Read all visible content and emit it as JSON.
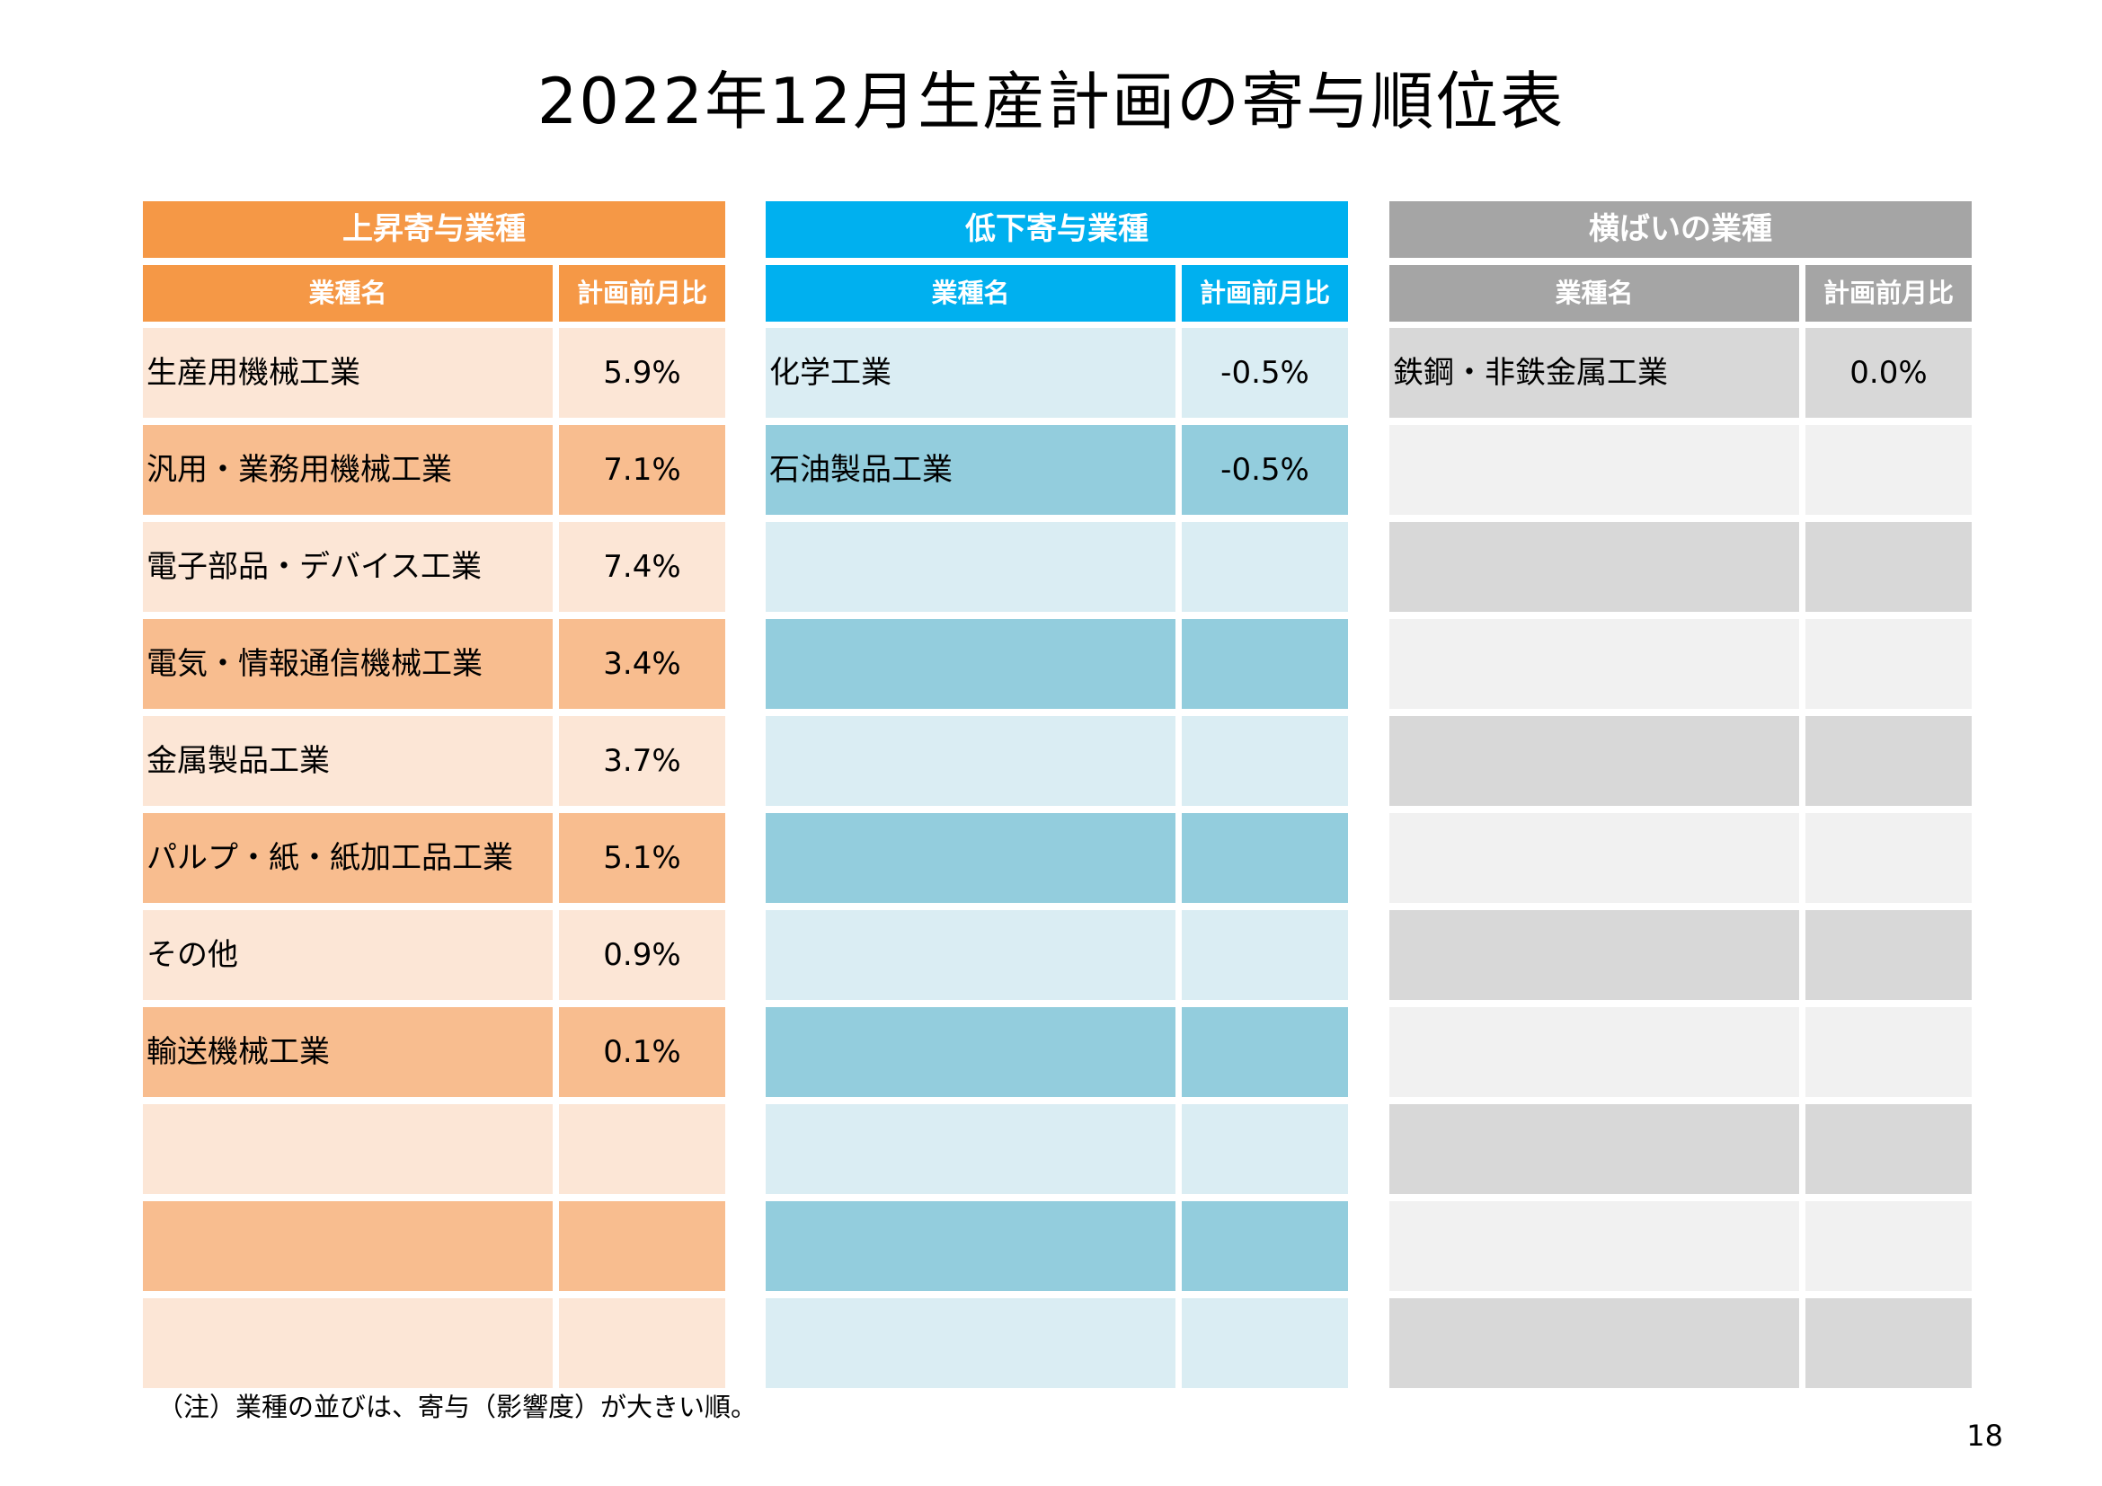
{
  "title": "2022年12月生産計画の寄与順位表",
  "header": {
    "name": "業種名",
    "ratio": "計画前月比"
  },
  "panels": [
    {
      "key": "up",
      "category": "上昇寄与業種",
      "colors": {
        "header": "#f59846",
        "row_light": "#fce6d6",
        "row_dark": "#f8bd8f"
      },
      "rows": [
        {
          "name": "生産用機械工業",
          "value": "5.9%"
        },
        {
          "name": "汎用・業務用機械工業",
          "value": "7.1%"
        },
        {
          "name": "電子部品・デバイス工業",
          "value": "7.4%"
        },
        {
          "name": "電気・情報通信機械工業",
          "value": "3.4%"
        },
        {
          "name": "金属製品工業",
          "value": "3.7%"
        },
        {
          "name": "パルプ・紙・紙加工品工業",
          "value": "5.1%"
        },
        {
          "name": "その他",
          "value": "0.9%"
        },
        {
          "name": "輸送機械工業",
          "value": "0.1%"
        },
        {
          "name": "",
          "value": ""
        },
        {
          "name": "",
          "value": ""
        },
        {
          "name": "",
          "value": ""
        }
      ]
    },
    {
      "key": "down",
      "category": "低下寄与業種",
      "colors": {
        "header": "#00b0ef",
        "row_light": "#daedf3",
        "row_dark": "#93cddd"
      },
      "rows": [
        {
          "name": "化学工業",
          "value": "-0.5%"
        },
        {
          "name": "石油製品工業",
          "value": "-0.5%"
        },
        {
          "name": "",
          "value": ""
        },
        {
          "name": "",
          "value": ""
        },
        {
          "name": "",
          "value": ""
        },
        {
          "name": "",
          "value": ""
        },
        {
          "name": "",
          "value": ""
        },
        {
          "name": "",
          "value": ""
        },
        {
          "name": "",
          "value": ""
        },
        {
          "name": "",
          "value": ""
        },
        {
          "name": "",
          "value": ""
        }
      ]
    },
    {
      "key": "flat",
      "category": "横ばいの業種",
      "colors": {
        "header": "#a5a5a5",
        "row_light": "#d8d8d8",
        "row_dark": "#f1f1f1"
      },
      "rows": [
        {
          "name": "鉄鋼・非鉄金属工業",
          "value": "0.0%"
        },
        {
          "name": "",
          "value": ""
        },
        {
          "name": "",
          "value": ""
        },
        {
          "name": "",
          "value": ""
        },
        {
          "name": "",
          "value": ""
        },
        {
          "name": "",
          "value": ""
        },
        {
          "name": "",
          "value": ""
        },
        {
          "name": "",
          "value": ""
        },
        {
          "name": "",
          "value": ""
        },
        {
          "name": "",
          "value": ""
        },
        {
          "name": "",
          "value": ""
        }
      ]
    }
  ],
  "note": "（注）業種の並びは、寄与（影響度）が大きい順。",
  "page_number": "18"
}
